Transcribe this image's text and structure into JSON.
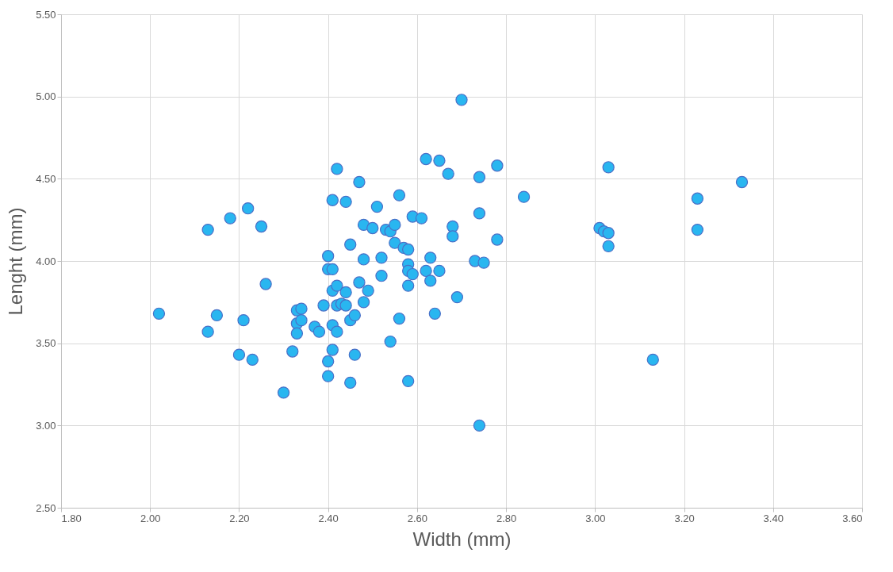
{
  "chart_data": {
    "type": "scatter",
    "xlabel": "Width (mm)",
    "ylabel": "Lenght (mm)",
    "xlim": [
      1.8,
      3.6
    ],
    "ylim": [
      2.5,
      5.5
    ],
    "xticks": [
      {
        "value": 1.8,
        "label": "1.80"
      },
      {
        "value": 2.0,
        "label": "2.00"
      },
      {
        "value": 2.2,
        "label": "2.20"
      },
      {
        "value": 2.4,
        "label": "2.40"
      },
      {
        "value": 2.6,
        "label": "2.60"
      },
      {
        "value": 2.8,
        "label": "2.80"
      },
      {
        "value": 3.0,
        "label": "3.00"
      },
      {
        "value": 3.2,
        "label": "3.20"
      },
      {
        "value": 3.4,
        "label": "3.40"
      },
      {
        "value": 3.6,
        "label": "3.60"
      }
    ],
    "yticks": [
      {
        "value": 2.5,
        "label": "2.50"
      },
      {
        "value": 3.0,
        "label": "3.00"
      },
      {
        "value": 3.5,
        "label": "3.50"
      },
      {
        "value": 4.0,
        "label": "4.00"
      },
      {
        "value": 4.5,
        "label": "4.50"
      },
      {
        "value": 5.0,
        "label": "5.00"
      },
      {
        "value": 5.5,
        "label": "5.50"
      }
    ],
    "grid": true,
    "marker": "circle",
    "x": [
      2.02,
      2.13,
      2.13,
      2.15,
      2.18,
      2.2,
      2.21,
      2.22,
      2.23,
      2.25,
      2.26,
      2.3,
      2.32,
      2.33,
      2.33,
      2.33,
      2.34,
      2.34,
      2.37,
      2.38,
      2.39,
      2.4,
      2.4,
      2.4,
      2.4,
      2.41,
      2.41,
      2.41,
      2.41,
      2.41,
      2.42,
      2.42,
      2.42,
      2.42,
      2.43,
      2.44,
      2.44,
      2.44,
      2.45,
      2.45,
      2.45,
      2.46,
      2.46,
      2.47,
      2.47,
      2.48,
      2.48,
      2.48,
      2.49,
      2.5,
      2.51,
      2.52,
      2.52,
      2.53,
      2.54,
      2.54,
      2.55,
      2.55,
      2.56,
      2.56,
      2.57,
      2.58,
      2.58,
      2.58,
      2.58,
      2.58,
      2.59,
      2.59,
      2.61,
      2.62,
      2.62,
      2.63,
      2.63,
      2.64,
      2.65,
      2.65,
      2.67,
      2.68,
      2.68,
      2.69,
      2.7,
      2.73,
      2.74,
      2.74,
      2.74,
      2.75,
      2.78,
      2.78,
      2.84,
      3.01,
      3.02,
      3.03,
      3.03,
      3.03,
      3.13,
      3.23,
      3.23,
      3.33
    ],
    "series": [
      {
        "color": "#29b6f0",
        "values": [
          3.68,
          3.57,
          4.19,
          3.67,
          4.26,
          3.43,
          3.64,
          4.32,
          3.4,
          4.21,
          3.86,
          3.2,
          3.45,
          3.7,
          3.62,
          3.56,
          3.71,
          3.64,
          3.6,
          3.57,
          3.73,
          4.03,
          3.95,
          3.39,
          3.3,
          4.37,
          3.95,
          3.82,
          3.61,
          3.46,
          4.56,
          3.85,
          3.73,
          3.57,
          3.74,
          4.36,
          3.81,
          3.73,
          4.1,
          3.64,
          3.26,
          3.67,
          3.43,
          4.48,
          3.87,
          4.22,
          4.01,
          3.75,
          3.82,
          4.2,
          4.33,
          4.02,
          3.91,
          4.19,
          4.18,
          3.51,
          4.22,
          4.11,
          4.4,
          3.65,
          4.08,
          4.07,
          3.98,
          3.94,
          3.85,
          3.27,
          4.27,
          3.92,
          4.26,
          4.62,
          3.94,
          4.02,
          3.88,
          3.68,
          4.61,
          3.94,
          4.53,
          4.21,
          4.15,
          3.78,
          4.98,
          4.0,
          4.51,
          4.29,
          3.0,
          3.99,
          4.58,
          4.13,
          4.39,
          4.2,
          4.18,
          4.57,
          4.17,
          4.09,
          3.4,
          4.38,
          4.19,
          4.48
        ]
      }
    ]
  }
}
